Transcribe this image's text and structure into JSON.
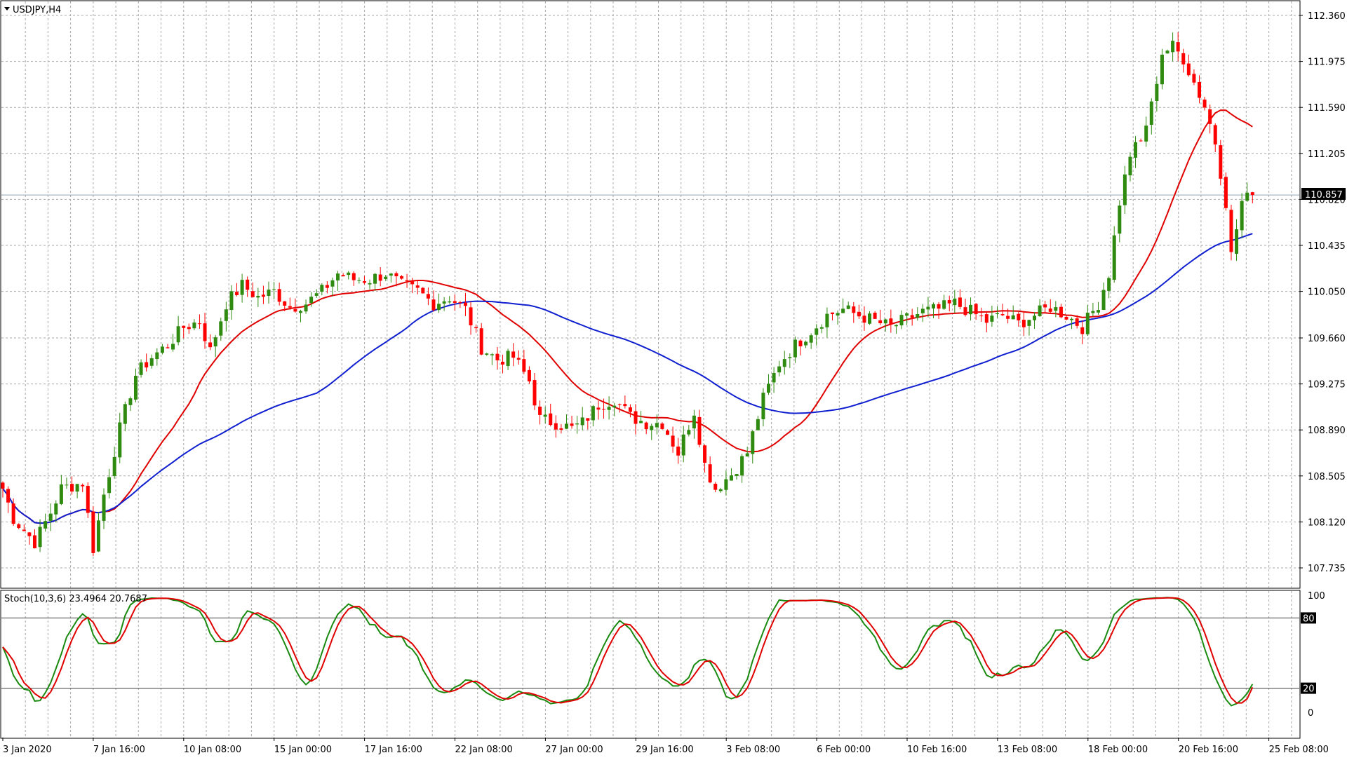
{
  "window": {
    "title": "USDJPY,H4",
    "title_icon": "triangle-down-icon"
  },
  "indicator": {
    "label": "Stoch(10,3,6) 23.4964 20.7687"
  },
  "price": {
    "current": "110.857"
  },
  "colors": {
    "bull_candle": "#2e8b0f",
    "bear_candle": "#ff0000",
    "ma_fast": "#e00000",
    "ma_slow": "#1020d0",
    "stoch_main": "#1a8a10",
    "stoch_signal": "#e00000",
    "grid": "#a9a9a9",
    "price_line": "#8ea3b8"
  },
  "chart_data": [
    {
      "type": "candlestick",
      "title": "USDJPY,H4",
      "y_ticks": [
        "112.360",
        "111.975",
        "111.590",
        "111.205",
        "110.820",
        "110.435",
        "110.050",
        "109.660",
        "109.275",
        "108.890",
        "108.505",
        "108.120",
        "107.735"
      ],
      "x_labels": [
        "3 Jan 2020",
        "7 Jan 16:00",
        "10 Jan 08:00",
        "15 Jan 00:00",
        "17 Jan 16:00",
        "22 Jan 08:00",
        "27 Jan 00:00",
        "29 Jan 16:00",
        "3 Feb 08:00",
        "6 Feb 00:00",
        "10 Feb 16:00",
        "13 Feb 08:00",
        "18 Feb 00:00",
        "20 Feb 16:00",
        "25 Feb 08:00"
      ],
      "ylim": [
        107.6,
        112.5
      ],
      "current_price": 110.857,
      "grid": true,
      "close_anchors": [
        [
          0,
          108.4
        ],
        [
          2,
          108.15
        ],
        [
          6,
          107.95
        ],
        [
          9,
          108.2
        ],
        [
          11,
          108.4
        ],
        [
          15,
          108.45
        ],
        [
          17,
          107.9
        ],
        [
          19,
          108.35
        ],
        [
          22,
          108.9
        ],
        [
          25,
          109.35
        ],
        [
          28,
          109.5
        ],
        [
          31,
          109.6
        ],
        [
          34,
          109.75
        ],
        [
          37,
          109.8
        ],
        [
          39,
          109.55
        ],
        [
          42,
          109.95
        ],
        [
          45,
          110.1
        ],
        [
          48,
          110.0
        ],
        [
          51,
          110.05
        ],
        [
          54,
          109.92
        ],
        [
          57,
          109.95
        ],
        [
          60,
          110.05
        ],
        [
          63,
          110.2
        ],
        [
          66,
          110.15
        ],
        [
          69,
          110.15
        ],
        [
          72,
          110.2
        ],
        [
          75,
          110.1
        ],
        [
          78,
          110.05
        ],
        [
          81,
          109.95
        ],
        [
          84,
          110.0
        ],
        [
          87,
          109.9
        ],
        [
          90,
          109.58
        ],
        [
          93,
          109.48
        ],
        [
          96,
          109.5
        ],
        [
          99,
          109.3
        ],
        [
          101,
          108.98
        ],
        [
          104,
          108.95
        ],
        [
          107,
          108.9
        ],
        [
          109,
          108.95
        ],
        [
          112,
          109.1
        ],
        [
          115,
          109.15
        ],
        [
          118,
          109.0
        ],
        [
          121,
          108.95
        ],
        [
          124,
          108.95
        ],
        [
          127,
          108.7
        ],
        [
          130,
          109.05
        ],
        [
          132,
          108.6
        ],
        [
          134,
          108.4
        ],
        [
          137,
          108.52
        ],
        [
          140,
          108.7
        ],
        [
          143,
          109.15
        ],
        [
          146,
          109.45
        ],
        [
          149,
          109.6
        ],
        [
          152,
          109.72
        ],
        [
          155,
          109.85
        ],
        [
          158,
          109.9
        ],
        [
          161,
          109.85
        ],
        [
          164,
          109.8
        ],
        [
          167,
          109.75
        ],
        [
          170,
          109.82
        ],
        [
          173,
          109.88
        ],
        [
          176,
          109.9
        ],
        [
          179,
          109.95
        ],
        [
          182,
          109.88
        ],
        [
          185,
          109.8
        ],
        [
          188,
          109.85
        ],
        [
          191,
          109.78
        ],
        [
          194,
          109.85
        ],
        [
          197,
          109.92
        ],
        [
          200,
          109.85
        ],
        [
          203,
          109.75
        ],
        [
          206,
          109.95
        ],
        [
          208,
          110.2
        ],
        [
          210,
          110.8
        ],
        [
          212,
          111.2
        ],
        [
          214,
          111.3
        ],
        [
          216,
          111.6
        ],
        [
          218,
          112.05
        ],
        [
          220,
          112.1
        ],
        [
          222,
          112.0
        ],
        [
          224,
          111.8
        ],
        [
          226,
          111.6
        ],
        [
          228,
          111.3
        ],
        [
          230,
          110.8
        ],
        [
          231,
          110.35
        ],
        [
          233,
          110.8
        ],
        [
          235,
          110.857
        ]
      ],
      "series": [
        {
          "name": "",
          "kind": "candles"
        },
        {
          "name": "",
          "kind": "moving-average",
          "period": 20,
          "color": "red"
        },
        {
          "name": "",
          "kind": "moving-average",
          "period": 60,
          "color": "blue"
        }
      ]
    },
    {
      "type": "line",
      "title": "Stoch(10,3,6) 23.4964 20.7687",
      "y_ticks": [
        "100",
        "80",
        "20",
        "0"
      ],
      "levels": [
        80,
        20
      ],
      "ylim": [
        0,
        100
      ],
      "last_main": 23.4964,
      "last_signal": 20.7687
    }
  ]
}
